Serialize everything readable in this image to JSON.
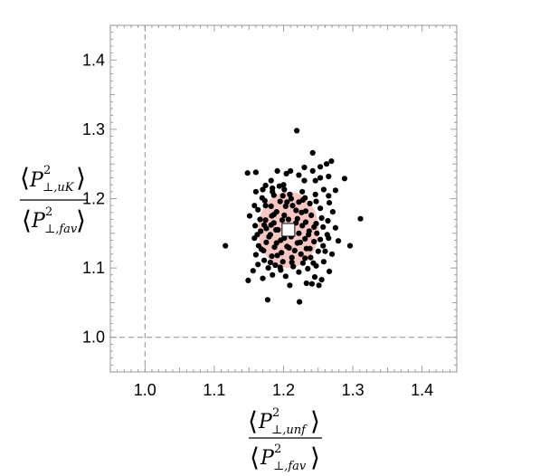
{
  "chart_data": {
    "type": "scatter",
    "title": "",
    "xlabel": {
      "numerator": {
        "symbol": "P",
        "sup": "2",
        "sub": "⊥,unf"
      },
      "denominator": {
        "symbol": "P",
        "sup": "2",
        "sub": "⊥,fav"
      }
    },
    "ylabel": {
      "numerator": {
        "symbol": "P",
        "sup": "2",
        "sub": "⊥,uK"
      },
      "denominator": {
        "symbol": "P",
        "sup": "2",
        "sub": "⊥,fav"
      }
    },
    "xlim": [
      0.95,
      1.45
    ],
    "ylim": [
      0.95,
      1.45
    ],
    "xticks": [
      "1.0",
      "1.1",
      "1.2",
      "1.3",
      "1.4"
    ],
    "yticks": [
      "1.0",
      "1.1",
      "1.2",
      "1.3",
      "1.4"
    ],
    "reference_lines": {
      "x": 1.0,
      "y": 1.0,
      "style": "dashed"
    },
    "central_value": {
      "x": 1.207,
      "y": 1.155,
      "marker": "white-square"
    },
    "uncertainty_region": {
      "center": [
        1.207,
        1.155
      ],
      "half_width_x": 0.044,
      "half_width_y": 0.055,
      "color": "#f7c7c4"
    },
    "colors": {
      "points": "#000000",
      "frame": "#9a9a9a",
      "reference": "#8c8c8c",
      "region": "#f7c7c4"
    },
    "series": [
      {
        "points": [
          [
            1.219,
            1.298
          ],
          [
            1.242,
            1.266
          ],
          [
            1.269,
            1.254
          ],
          [
            1.262,
            1.25
          ],
          [
            1.253,
            1.246
          ],
          [
            1.23,
            1.245
          ],
          [
            1.191,
            1.24
          ],
          [
            1.21,
            1.24
          ],
          [
            1.242,
            1.24
          ],
          [
            1.148,
            1.237
          ],
          [
            1.16,
            1.238
          ],
          [
            1.204,
            1.236
          ],
          [
            1.222,
            1.234
          ],
          [
            1.265,
            1.232
          ],
          [
            1.253,
            1.23
          ],
          [
            1.288,
            1.229
          ],
          [
            1.182,
            1.226
          ],
          [
            1.23,
            1.226
          ],
          [
            1.246,
            1.226
          ],
          [
            1.2,
            1.22
          ],
          [
            1.174,
            1.219
          ],
          [
            1.194,
            1.218
          ],
          [
            1.184,
            1.215
          ],
          [
            1.17,
            1.213
          ],
          [
            1.201,
            1.213
          ],
          [
            1.258,
            1.213
          ],
          [
            1.275,
            1.212
          ],
          [
            1.16,
            1.21
          ],
          [
            1.184,
            1.21
          ],
          [
            1.227,
            1.21
          ],
          [
            1.186,
            1.205
          ],
          [
            1.209,
            1.206
          ],
          [
            1.246,
            1.206
          ],
          [
            1.265,
            1.204
          ],
          [
            1.169,
            1.201
          ],
          [
            1.211,
            1.2
          ],
          [
            1.231,
            1.201
          ],
          [
            1.173,
            1.197
          ],
          [
            1.195,
            1.196
          ],
          [
            1.222,
            1.195
          ],
          [
            1.266,
            1.194
          ],
          [
            1.238,
            1.193
          ],
          [
            1.158,
            1.19
          ],
          [
            1.182,
            1.189
          ],
          [
            1.203,
            1.189
          ],
          [
            1.253,
            1.186
          ],
          [
            1.163,
            1.184
          ],
          [
            1.218,
            1.183
          ],
          [
            1.232,
            1.182
          ],
          [
            1.19,
            1.181
          ],
          [
            1.271,
            1.181
          ],
          [
            1.201,
            1.176
          ],
          [
            1.24,
            1.176
          ],
          [
            1.183,
            1.175
          ],
          [
            1.151,
            1.175
          ],
          [
            1.311,
            1.171
          ],
          [
            1.22,
            1.171
          ],
          [
            1.198,
            1.169
          ],
          [
            1.174,
            1.169
          ],
          [
            1.264,
            1.168
          ],
          [
            1.232,
            1.166
          ],
          [
            1.186,
            1.165
          ],
          [
            1.247,
            1.164
          ],
          [
            1.172,
            1.162
          ],
          [
            1.159,
            1.161
          ],
          [
            1.227,
            1.161
          ],
          [
            1.204,
            1.16
          ],
          [
            1.257,
            1.159
          ],
          [
            1.275,
            1.158
          ],
          [
            1.189,
            1.155
          ],
          [
            1.237,
            1.153
          ],
          [
            1.167,
            1.153
          ],
          [
            1.222,
            1.15
          ],
          [
            1.248,
            1.15
          ],
          [
            1.181,
            1.148
          ],
          [
            1.263,
            1.148
          ],
          [
            1.211,
            1.145
          ],
          [
            1.158,
            1.143
          ],
          [
            1.231,
            1.142
          ],
          [
            1.279,
            1.139
          ],
          [
            1.196,
            1.14
          ],
          [
            1.175,
            1.137
          ],
          [
            1.244,
            1.138
          ],
          [
            1.22,
            1.136
          ],
          [
            1.116,
            1.132
          ],
          [
            1.164,
            1.132
          ],
          [
            1.257,
            1.132
          ],
          [
            1.187,
            1.13
          ],
          [
            1.208,
            1.129
          ],
          [
            1.233,
            1.128
          ],
          [
            1.296,
            1.132
          ],
          [
            1.171,
            1.125
          ],
          [
            1.25,
            1.124
          ],
          [
            1.197,
            1.122
          ],
          [
            1.27,
            1.12
          ],
          [
            1.225,
            1.12
          ],
          [
            1.16,
            1.119
          ],
          [
            1.183,
            1.117
          ],
          [
            1.212,
            1.115
          ],
          [
            1.239,
            1.115
          ],
          [
            1.172,
            1.111
          ],
          [
            1.258,
            1.109
          ],
          [
            1.199,
            1.109
          ],
          [
            1.228,
            1.107
          ],
          [
            1.163,
            1.105
          ],
          [
            1.188,
            1.104
          ],
          [
            1.247,
            1.103
          ],
          [
            1.214,
            1.102
          ],
          [
            1.178,
            1.1
          ],
          [
            1.235,
            1.099
          ],
          [
            1.196,
            1.097
          ],
          [
            1.156,
            1.096
          ],
          [
            1.266,
            1.095
          ],
          [
            1.222,
            1.094
          ],
          [
            1.184,
            1.09
          ],
          [
            1.203,
            1.088
          ],
          [
            1.245,
            1.087
          ],
          [
            1.17,
            1.085
          ],
          [
            1.255,
            1.083
          ],
          [
            1.149,
            1.082
          ],
          [
            1.233,
            1.078
          ],
          [
            1.241,
            1.077
          ],
          [
            1.251,
            1.075
          ],
          [
            1.209,
            1.075
          ],
          [
            1.177,
            1.054
          ],
          [
            1.223,
            1.051
          ],
          [
            1.191,
            1.118
          ],
          [
            1.207,
            1.17
          ],
          [
            1.216,
            1.125
          ],
          [
            1.179,
            1.145
          ],
          [
            1.238,
            1.128
          ],
          [
            1.244,
            1.159
          ],
          [
            1.166,
            1.17
          ],
          [
            1.199,
            1.204
          ],
          [
            1.253,
            1.141
          ],
          [
            1.213,
            1.19
          ],
          [
            1.19,
            1.136
          ],
          [
            1.226,
            1.18
          ],
          [
            1.182,
            1.162
          ],
          [
            1.205,
            1.131
          ],
          [
            1.26,
            1.124
          ],
          [
            1.247,
            1.196
          ],
          [
            1.174,
            1.19
          ],
          [
            1.231,
            1.114
          ],
          [
            1.195,
            1.101
          ],
          [
            1.218,
            1.165
          ],
          [
            1.162,
            1.148
          ],
          [
            1.228,
            1.198
          ],
          [
            1.201,
            1.143
          ],
          [
            1.186,
            1.177
          ],
          [
            1.255,
            1.172
          ],
          [
            1.212,
            1.108
          ],
          [
            1.168,
            1.127
          ],
          [
            1.236,
            1.148
          ],
          [
            1.192,
            1.155
          ],
          [
            1.265,
            1.143
          ],
          [
            1.181,
            1.108
          ],
          [
            1.224,
            1.137
          ],
          [
            1.243,
            1.107
          ],
          [
            1.205,
            1.195
          ],
          [
            1.175,
            1.157
          ]
        ]
      }
    ]
  }
}
